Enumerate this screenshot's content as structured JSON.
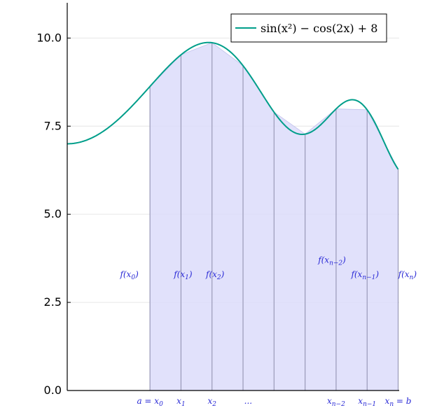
{
  "chart_data": {
    "type": "line",
    "function_label": "sin(x²) − cos(2x) + 8",
    "xlim": [
      0.0,
      3.21
    ],
    "ylim": [
      0.0,
      11.0
    ],
    "yticks": [
      {
        "value": 0.0,
        "label": "0.0"
      },
      {
        "value": 2.5,
        "label": "2.5"
      },
      {
        "value": 5.0,
        "label": "5.0"
      },
      {
        "value": 7.5,
        "label": "7.5"
      },
      {
        "value": 10.0,
        "label": "10.0"
      }
    ],
    "grid": true,
    "legend_position": "top-right",
    "colors": {
      "curve": "#009e8a",
      "fill": "#dcdcfa",
      "fill_edge": "#c8c8ee",
      "partition_line": "#9a9ab8",
      "annotation": "#2b2bd6"
    },
    "partition": {
      "a": 0.8,
      "b": 3.2,
      "n": 8,
      "x": [
        0.8,
        1.1,
        1.4,
        1.7,
        2.0,
        2.3,
        2.6,
        2.9,
        3.2
      ]
    },
    "x_annotations": [
      {
        "base": "a = x",
        "sub": "0",
        "x": 0.8
      },
      {
        "base": "x",
        "sub": "1",
        "x": 1.1
      },
      {
        "base": "x",
        "sub": "2",
        "x": 1.4
      },
      {
        "base": "...",
        "sub": "",
        "x": 1.75
      },
      {
        "base": "x",
        "sub": "n−2",
        "x": 2.6
      },
      {
        "base": "x",
        "sub": "n−1",
        "x": 2.9
      },
      {
        "base": "x",
        "sub": "n",
        "tail": " = b",
        "x": 3.2
      }
    ],
    "y_annotations": [
      {
        "base": "f(x",
        "sub": "0",
        "tail": ")",
        "x": 0.6,
        "y": 3.3
      },
      {
        "base": "f(x",
        "sub": "1",
        "tail": ")",
        "x": 1.12,
        "y": 3.3
      },
      {
        "base": "f(x",
        "sub": "2",
        "tail": ")",
        "x": 1.43,
        "y": 3.3
      },
      {
        "base": "f(x",
        "sub": "n−2",
        "tail": ")",
        "x": 2.56,
        "y": 3.7
      },
      {
        "base": "f(x",
        "sub": "n−1",
        "tail": ")",
        "x": 2.88,
        "y": 3.3
      },
      {
        "base": "f(x",
        "sub": "n",
        "tail": ")",
        "x": 3.29,
        "y": 3.3
      }
    ]
  }
}
